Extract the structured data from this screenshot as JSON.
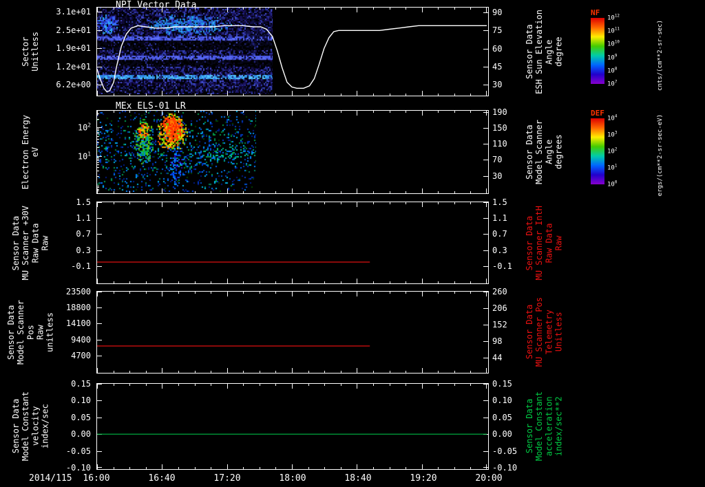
{
  "figure": {
    "bg": "#000000",
    "date_label": "2014/115",
    "x_axis": {
      "t_start_hours": 16,
      "t_end_hours": 20,
      "major_tick_labels": [
        "16:00",
        "16:40",
        "17:20",
        "18:00",
        "18:40",
        "19:20",
        "20:00"
      ]
    }
  },
  "panels": [
    {
      "title": "NPI Vector Data",
      "left_label": "Sector\nUnitless",
      "left_axis": {
        "min": 3.0,
        "max": 32.5,
        "log": false,
        "ticks": [
          {
            "v": 31,
            "label": "3.1e+01"
          },
          {
            "v": 24.8,
            "label": "2.5e+01"
          },
          {
            "v": 18.6,
            "label": "1.9e+01"
          },
          {
            "v": 12.4,
            "label": "1.2e+01"
          },
          {
            "v": 6.2,
            "label": "6.2e+00"
          }
        ]
      },
      "right_label": "Sensor Data\nESH Sun Elevation\nAngle\ndegree",
      "right_label_color": "#ffffff",
      "right_axis": {
        "min": 22,
        "max": 94,
        "log": false,
        "ticks": [
          {
            "v": 90,
            "label": "90"
          },
          {
            "v": 75,
            "label": "75"
          },
          {
            "v": 60,
            "label": "60"
          },
          {
            "v": 45,
            "label": "45"
          },
          {
            "v": 30,
            "label": "30"
          }
        ]
      }
    },
    {
      "title": "MEx ELS-01 LR",
      "left_label": "Electron Energy\neV",
      "left_axis": {
        "min": 0.55,
        "max": 380,
        "log": true,
        "ticks": [
          {
            "v": 100,
            "label": "10^2"
          },
          {
            "v": 10,
            "label": "10^1"
          }
        ]
      },
      "right_label": "Sensor Data\nModel Scanner\nAngle\ndegrees",
      "right_label_color": "#ffffff",
      "right_axis": {
        "min": -10,
        "max": 193,
        "log": false,
        "ticks": [
          {
            "v": 190,
            "label": "190"
          },
          {
            "v": 150,
            "label": "150"
          },
          {
            "v": 110,
            "label": "110"
          },
          {
            "v": 70,
            "label": "70"
          },
          {
            "v": 30,
            "label": "30"
          }
        ]
      }
    },
    {
      "title": "",
      "left_label": "Sensor Data\nMU Scanner +30V\nRaw Data\nRaw",
      "left_axis": {
        "min": -0.5,
        "max": 1.5,
        "log": false,
        "ticks": [
          {
            "v": 1.5,
            "label": "1.5"
          },
          {
            "v": 1.1,
            "label": "1.1"
          },
          {
            "v": 0.7,
            "label": "0.7"
          },
          {
            "v": 0.3,
            "label": "0.3"
          },
          {
            "v": -0.1,
            "label": "-0.1"
          }
        ]
      },
      "right_label": "Sensor Data\nMU Scanner IntH\nRaw Data\nRaw",
      "right_label_color": "#ee1111",
      "right_axis": {
        "min": -0.5,
        "max": 1.5,
        "log": false,
        "ticks": [
          {
            "v": 1.5,
            "label": "1.5"
          },
          {
            "v": 1.1,
            "label": "1.1"
          },
          {
            "v": 0.7,
            "label": "0.7"
          },
          {
            "v": 0.3,
            "label": "0.3"
          },
          {
            "v": -0.1,
            "label": "-0.1"
          }
        ]
      }
    },
    {
      "title": "",
      "left_label": "Sensor Data\nModel Scanner Pos\nRaw\nunitless",
      "left_axis": {
        "min": 0,
        "max": 23500,
        "log": false,
        "ticks": [
          {
            "v": 23500,
            "label": "23500"
          },
          {
            "v": 18800,
            "label": "18800"
          },
          {
            "v": 14100,
            "label": "14100"
          },
          {
            "v": 9400,
            "label": "9400"
          },
          {
            "v": 4700,
            "label": "4700"
          }
        ]
      },
      "right_label": "Sensor Data\nMU Scanner Pos\nTelemetry\nUnitless",
      "right_label_color": "#ee1111",
      "right_axis": {
        "min": 0,
        "max": 260,
        "log": false,
        "ticks": [
          {
            "v": 260,
            "label": "260"
          },
          {
            "v": 206,
            "label": "206"
          },
          {
            "v": 152,
            "label": "152"
          },
          {
            "v": 98,
            "label": "98"
          },
          {
            "v": 44,
            "label": "44"
          }
        ]
      }
    },
    {
      "title": "",
      "left_label": "Sensor Data\nModel Constant\nvelocity\nindex/sec",
      "left_axis": {
        "min": -0.1,
        "max": 0.15,
        "log": false,
        "ticks": [
          {
            "v": 0.15,
            "label": "0.15"
          },
          {
            "v": 0.1,
            "label": "0.10"
          },
          {
            "v": 0.05,
            "label": "0.05"
          },
          {
            "v": 0.0,
            "label": "0.00"
          },
          {
            "v": -0.05,
            "label": "-0.05"
          },
          {
            "v": -0.1,
            "label": "-0.10"
          }
        ]
      },
      "right_label": "Sensor Data\nModel Constant\nacceleration\nindex/sec**2",
      "right_label_color": "#00cc44",
      "right_axis": {
        "min": -0.1,
        "max": 0.15,
        "log": false,
        "ticks": [
          {
            "v": 0.15,
            "label": "0.15"
          },
          {
            "v": 0.1,
            "label": "0.10"
          },
          {
            "v": 0.05,
            "label": "0.05"
          },
          {
            "v": 0.0,
            "label": "0.00"
          },
          {
            "v": -0.05,
            "label": "-0.05"
          },
          {
            "v": -0.1,
            "label": "-0.10"
          }
        ]
      }
    }
  ],
  "colorbars": [
    {
      "name": "NF",
      "name_color": "#ff3300",
      "unit": "cnts/(cm**2-sr-sec)",
      "gradient": [
        "#dd0000",
        "#ff6600",
        "#ffee00",
        "#44cc00",
        "#00ccaa",
        "#0066ff",
        "#2200cc",
        "#8800cc"
      ],
      "ticks": [
        "10^12",
        "10^11",
        "10^10",
        "10^9",
        "10^8",
        "10^7"
      ]
    },
    {
      "name": "DEF",
      "name_color": "#ff3300",
      "unit": "ergs/(cm**2-sr-sec-eV)",
      "gradient": [
        "#dd0000",
        "#ff6600",
        "#ffee00",
        "#44cc00",
        "#00ccaa",
        "#0066ff",
        "#2200cc",
        "#8800cc"
      ],
      "ticks": [
        "10^4",
        "10^3",
        "10^2",
        "10^1",
        "10^0"
      ]
    }
  ],
  "chart_data": [
    {
      "type": "spectrogram",
      "panel": 0,
      "title": "NPI Vector Data",
      "ylabel_left": "Sector (Unitless)",
      "ylabel_right": "ESH Sun Elevation Angle (degree)",
      "overlay_line": {
        "name": "ESH Sun Elevation Angle",
        "color": "#ffffff",
        "width": 1.4,
        "units": "degrees",
        "points": [
          [
            16.0,
            43
          ],
          [
            16.03,
            35
          ],
          [
            16.07,
            27
          ],
          [
            16.1,
            24
          ],
          [
            16.13,
            25
          ],
          [
            16.17,
            32
          ],
          [
            16.2,
            45
          ],
          [
            16.25,
            62
          ],
          [
            16.3,
            72
          ],
          [
            16.35,
            77
          ],
          [
            16.42,
            79
          ],
          [
            16.5,
            78
          ],
          [
            16.6,
            77
          ],
          [
            16.7,
            77
          ],
          [
            16.8,
            78
          ],
          [
            16.9,
            78
          ],
          [
            17.0,
            78
          ],
          [
            17.1,
            78
          ],
          [
            17.2,
            78
          ],
          [
            17.3,
            79
          ],
          [
            17.4,
            79
          ],
          [
            17.5,
            79
          ],
          [
            17.6,
            78
          ],
          [
            17.68,
            78
          ],
          [
            17.74,
            76
          ],
          [
            17.8,
            70
          ],
          [
            17.85,
            58
          ],
          [
            17.9,
            44
          ],
          [
            17.95,
            32
          ],
          [
            18.0,
            28
          ],
          [
            18.05,
            27
          ],
          [
            18.12,
            27
          ],
          [
            18.18,
            29
          ],
          [
            18.23,
            35
          ],
          [
            18.28,
            47
          ],
          [
            18.33,
            60
          ],
          [
            18.38,
            69
          ],
          [
            18.43,
            74
          ],
          [
            18.48,
            75
          ],
          [
            18.6,
            75
          ],
          [
            18.75,
            75
          ],
          [
            18.9,
            75
          ],
          [
            19.0,
            76
          ],
          [
            19.1,
            77
          ],
          [
            19.2,
            78
          ],
          [
            19.3,
            79
          ],
          [
            19.4,
            79
          ],
          [
            19.6,
            79
          ],
          [
            19.8,
            79
          ],
          [
            20.0,
            79
          ]
        ]
      },
      "spectrogram": {
        "seed": 7,
        "t_start": 16.0,
        "t_end": 17.8,
        "value_units": "cnts/(cm**2-sr-sec)",
        "base": [
          [
            "#000008",
            28
          ],
          [
            "#10083a",
            18
          ],
          [
            "#1a1260",
            15
          ],
          [
            "#252a8e",
            13
          ],
          [
            "#3340b4",
            9
          ],
          [
            "#000000",
            10
          ],
          [
            "#4a52d8",
            4
          ],
          [
            "#0a0a20",
            3
          ]
        ],
        "bands": [
          {
            "y0": 0.33,
            "y1": 0.375,
            "p": 0.75,
            "colors": [
              "#4a5ae8",
              "#6070f8",
              "#3848d0"
            ]
          },
          {
            "y0": 0.375,
            "y1": 0.49,
            "p": 0.8,
            "colors": [
              "#000000",
              "#060618"
            ]
          },
          {
            "y0": 0.55,
            "y1": 0.59,
            "p": 0.7,
            "colors": [
              "#4a5ae8",
              "#5868f0"
            ]
          },
          {
            "y0": 0.6,
            "y1": 0.67,
            "p": 0.8,
            "colors": [
              "#000000",
              "#060618"
            ]
          },
          {
            "y0": 0.775,
            "y1": 0.825,
            "p": 0.8,
            "colors": [
              "#38a8f0",
              "#58c8ff",
              "#2a80e0"
            ]
          },
          {
            "y0": 0.92,
            "y1": 1.0,
            "p": 0.45,
            "colors": [
              "#0a0a30",
              "#000000"
            ]
          }
        ],
        "blobs": [
          {
            "t0": 15.98,
            "t1": 16.22,
            "y0": 0.05,
            "y1": 0.3,
            "p": 0.8,
            "colors": [
              "#2a4af0",
              "#3a6af8",
              "#2030d0",
              "#30b0f0"
            ]
          },
          {
            "t0": 16.2,
            "t1": 16.48,
            "y0": 0.03,
            "y1": 0.36,
            "p": 0.6,
            "colors": [
              "#000014",
              "#0a0a2a"
            ]
          },
          {
            "t0": 16.45,
            "t1": 17.38,
            "y0": 0.07,
            "y1": 0.32,
            "p": 0.65,
            "colors": [
              "#2090e0",
              "#30b0f0",
              "#2a50e8",
              "#1a70c8"
            ]
          },
          {
            "t0": 17.4,
            "t1": 17.82,
            "y0": 0.0,
            "y1": 0.55,
            "p": 0.4,
            "colors": [
              "#0a0a28",
              "#12124a"
            ]
          }
        ]
      }
    },
    {
      "type": "spectrogram",
      "panel": 1,
      "title": "MEx ELS-01 LR",
      "ylabel_left": "Electron Energy (eV)",
      "ylabel_right": "Model Scanner Angle (degrees)",
      "spectrogram": {
        "seed": 99,
        "t_start": 16.0,
        "t_end": 17.63,
        "value_units": "ergs/(cm**2-sr-sec-eV)",
        "base": [
          [
            "#000000",
            90
          ],
          [
            "#001a88",
            2.5
          ],
          [
            "#0040cc",
            2.5
          ],
          [
            "#0080ff",
            1.6
          ],
          [
            "#00b8e8",
            1.2
          ],
          [
            "#00a050",
            1.2
          ],
          [
            "#004400",
            1
          ]
        ],
        "bands": [
          {
            "y0": 0.22,
            "y1": 0.72,
            "p": 0.08,
            "colors": [
              "#0030b0",
              "#0060e8",
              "#0090ff",
              "#00b088",
              "#008844"
            ]
          },
          {
            "y0": 0.72,
            "y1": 0.95,
            "p": 0.035,
            "colors": [
              "#002090",
              "#0050d0",
              "#008060"
            ]
          }
        ],
        "blobs": [
          {
            "t0": 16.37,
            "t1": 16.58,
            "y0": 0.08,
            "y1": 0.66,
            "p": 0.75,
            "colors": [
              "#22bb22",
              "#66cc00",
              "#00aa55",
              "#0088cc"
            ]
          },
          {
            "t0": 16.4,
            "t1": 16.53,
            "y0": 0.12,
            "y1": 0.35,
            "p": 0.8,
            "colors": [
              "#ff3300",
              "#ff8800",
              "#ccdd00"
            ]
          },
          {
            "t0": 16.6,
            "t1": 16.93,
            "y0": 0.02,
            "y1": 0.5,
            "p": 0.85,
            "colors": [
              "#ffaa00",
              "#ddee00",
              "#55cc00",
              "#ff5500"
            ]
          },
          {
            "t0": 16.64,
            "t1": 16.88,
            "y0": 0.04,
            "y1": 0.38,
            "p": 0.9,
            "colors": [
              "#ff2200",
              "#ff4400",
              "#ff7700"
            ]
          },
          {
            "t0": 16.73,
            "t1": 16.87,
            "y0": 0.4,
            "y1": 1.0,
            "p": 0.55,
            "colors": [
              "#0033dd",
              "#0066ff",
              "#00aaff",
              "#3300bb"
            ]
          },
          {
            "t0": 16.9,
            "t1": 17.63,
            "y0": 0.44,
            "y1": 0.6,
            "p": 0.3,
            "colors": [
              "#00bb66",
              "#0077ff",
              "#00ccaa",
              "#0044cc"
            ]
          }
        ]
      }
    },
    {
      "type": "line",
      "panel": 2,
      "ylabel_left": "MU Scanner +30V Raw Data (Raw)",
      "ylabel_right": "MU Scanner IntH Raw Data (Raw)",
      "series": [
        {
          "name": "MU Scanner +30V Raw",
          "color": "#dd1111",
          "width": 1.2,
          "points": [
            [
              16.0,
              0.0
            ],
            [
              18.8,
              0.0
            ]
          ]
        }
      ]
    },
    {
      "type": "line",
      "panel": 3,
      "ylabel_left": "Model Scanner Pos Raw (unitless)",
      "ylabel_right": "MU Scanner Pos Telemetry (Unitless)",
      "series": [
        {
          "name": "Model Scanner Pos Raw",
          "color": "#dd1111",
          "width": 1.2,
          "points": [
            [
              16.0,
              7500
            ],
            [
              18.8,
              7500
            ]
          ]
        }
      ]
    },
    {
      "type": "line",
      "panel": 4,
      "ylabel_left": "Model Constant velocity (index/sec)",
      "ylabel_right": "Model Constant acceleration (index/sec**2)",
      "series": [
        {
          "name": "Model Constant velocity",
          "color": "#00bb44",
          "width": 1.2,
          "points": [
            [
              16.0,
              0.0
            ],
            [
              20.0,
              0.0
            ]
          ]
        }
      ]
    }
  ]
}
